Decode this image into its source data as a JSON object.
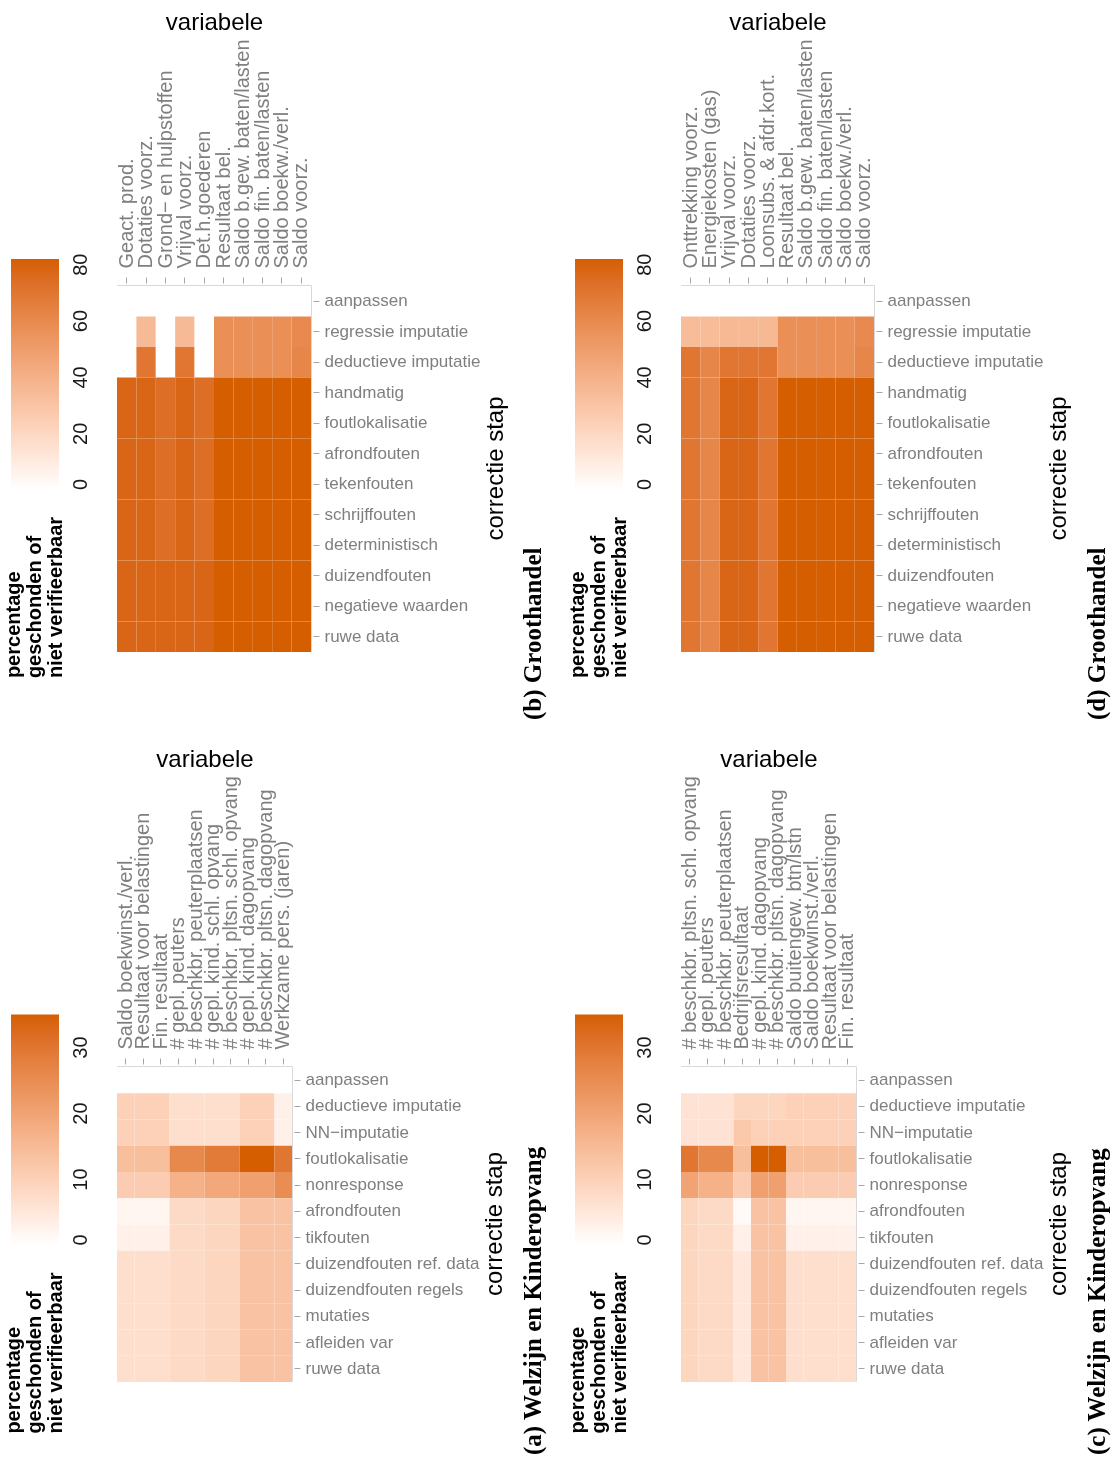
{
  "chart_data": [
    {
      "type": "heatmap",
      "annotations": [
        "(a) Welzijn en Kinderopvang"
      ],
      "xlabel": "variabele",
      "ylabel": "correctie stap",
      "clabel": "percentage\ngeschonden of\nniet verifieerbaar",
      "color": "#d55e00",
      "clim": [
        0,
        35
      ],
      "cticks": [
        0,
        10,
        20,
        30
      ],
      "categories": [
        "Saldo boekwinst./verl.",
        "Resultaat voor belastingen",
        "Fin. resultaat",
        "# gepl. peuters",
        "# beschkbr. peuterplaatsen",
        "# gepl. kind. schl. opvang",
        "# beschkbr. pltsn. schl. opvang",
        "# gepl. kind. dagopvang",
        "# beschkbr. pltsn. dagopvang",
        "Werkzame pers. (jaren)"
      ],
      "y_categories": [
        "aanpassen",
        "deductieve imputatie",
        "NN−imputatie",
        "foutlokalisatie",
        "nonresponse",
        "afrondfouten",
        "tikfouten",
        "duizendfouten ref. data",
        "duizendfouten regels",
        "mutaties",
        "afleiden var",
        "ruwe data"
      ],
      "cells": [
        [
          0,
          0,
          0,
          0,
          0,
          0,
          0,
          0,
          0,
          0
        ],
        [
          10,
          10,
          10,
          7,
          7,
          7,
          7,
          10,
          10,
          3
        ],
        [
          10,
          10,
          10,
          7,
          7,
          7,
          7,
          10,
          10,
          3
        ],
        [
          14,
          14,
          14,
          26,
          26,
          29,
          29,
          35,
          35,
          30
        ],
        [
          11,
          11,
          11,
          17,
          17,
          19,
          19,
          21,
          21,
          25
        ],
        [
          2,
          2,
          2,
          8,
          8,
          9,
          9,
          13,
          13,
          13
        ],
        [
          3,
          3,
          3,
          8,
          8,
          9,
          9,
          13,
          13,
          13
        ],
        [
          7,
          7,
          7,
          8,
          8,
          9,
          9,
          13,
          13,
          13
        ],
        [
          7,
          7,
          7,
          8,
          8,
          9,
          9,
          13,
          13,
          13
        ],
        [
          7,
          7,
          7,
          8,
          8,
          9,
          9,
          13,
          13,
          13
        ],
        [
          7,
          7,
          7,
          8,
          8,
          9,
          9,
          13,
          13,
          13
        ],
        [
          7,
          7,
          7,
          8,
          8,
          9,
          9,
          13,
          13,
          13
        ]
      ]
    },
    {
      "type": "heatmap",
      "annotations": [
        "(b) Groothandel"
      ],
      "xlabel": "variabele",
      "ylabel": "correctie stap",
      "clabel": "percentage\ngeschonden of\nniet verifieerbaar",
      "color": "#d55e00",
      "clim": [
        0,
        82
      ],
      "cticks": [
        0,
        20,
        40,
        60,
        80
      ],
      "categories": [
        "Geact. prod.",
        "Dotaties voorz.",
        "Grond− en hulpstoffen",
        "Vrijval voorz.",
        "Det.h.goederen",
        "Resultaat bel.",
        "Saldo b.gew. baten/lasten",
        "Saldo fin. baten/lasten",
        "Saldo boekw./verl.",
        "Saldo voorz."
      ],
      "y_categories": [
        "aanpassen",
        "regressie imputatie",
        "deductieve imputatie",
        "handmatig",
        "foutlokalisatie",
        "afrondfouten",
        "tekenfouten",
        "schrijffouten",
        "deterministisch",
        "duizendfouten",
        "negatieve waarden",
        "ruwe data"
      ],
      "cells": [
        [
          0,
          0,
          0,
          0,
          0,
          0,
          0,
          0,
          0,
          0
        ],
        [
          0,
          35,
          0,
          35,
          0,
          57,
          57,
          57,
          57,
          60
        ],
        [
          0,
          70,
          0,
          70,
          0,
          57,
          57,
          57,
          57,
          62
        ],
        [
          78,
          78,
          74,
          78,
          74,
          82,
          82,
          82,
          82,
          82
        ],
        [
          78,
          78,
          74,
          78,
          74,
          82,
          82,
          82,
          82,
          82
        ],
        [
          78,
          78,
          74,
          78,
          74,
          82,
          82,
          82,
          82,
          82
        ],
        [
          78,
          78,
          74,
          78,
          74,
          82,
          82,
          82,
          82,
          82
        ],
        [
          78,
          78,
          74,
          78,
          74,
          82,
          82,
          82,
          82,
          82
        ],
        [
          78,
          78,
          74,
          78,
          74,
          82,
          82,
          82,
          82,
          82
        ],
        [
          78,
          78,
          78,
          78,
          78,
          82,
          82,
          82,
          82,
          82
        ],
        [
          78,
          78,
          78,
          78,
          78,
          82,
          82,
          82,
          82,
          82
        ],
        [
          78,
          78,
          78,
          78,
          78,
          82,
          82,
          82,
          82,
          82
        ]
      ]
    },
    {
      "type": "heatmap",
      "annotations": [
        "(c) Welzijn en Kinderopvang"
      ],
      "xlabel": "variabele",
      "ylabel": "correctie stap",
      "clabel": "percentage\ngeschonden of\nniet verifieerbaar",
      "color": "#d55e00",
      "clim": [
        0,
        35
      ],
      "cticks": [
        0,
        10,
        20,
        30
      ],
      "categories": [
        "# beschkbr. pltsn. schl. opvang",
        "# gepl. peuters",
        "# beschkbr. peuterplaatsen",
        "Bedrijfsresultaat",
        "# gepl. kind. dagopvang",
        "# beschkbr. pltsn. dagopvang",
        "Saldo buitengew. btn/lstn",
        "Saldo boekwinst./verl.",
        "Resultaat voor belastingen",
        "Fin. resultaat"
      ],
      "y_categories": [
        "aanpassen",
        "deductieve imputatie",
        "NN−imputatie",
        "foutlokalisatie",
        "nonresponse",
        "afrondfouten",
        "tikfouten",
        "duizendfouten ref. data",
        "duizendfouten regels",
        "mutaties",
        "afleiden var",
        "ruwe data"
      ],
      "cells": [
        [
          0,
          0,
          0,
          0,
          0,
          0,
          0,
          0,
          0,
          0
        ],
        [
          6,
          6,
          6,
          9,
          9,
          9,
          10,
          10,
          10,
          10
        ],
        [
          6,
          6,
          6,
          12,
          10,
          10,
          10,
          10,
          10,
          10
        ],
        [
          30,
          26,
          26,
          14,
          35,
          35,
          14,
          14,
          14,
          14
        ],
        [
          20,
          17,
          17,
          11,
          21,
          21,
          11,
          11,
          11,
          11
        ],
        [
          9,
          8,
          8,
          1,
          13,
          13,
          2,
          2,
          2,
          2
        ],
        [
          9,
          8,
          8,
          3,
          13,
          13,
          3,
          3,
          3,
          3
        ],
        [
          9,
          8,
          8,
          5,
          13,
          13,
          7,
          7,
          7,
          7
        ],
        [
          9,
          8,
          8,
          5,
          13,
          13,
          7,
          7,
          7,
          7
        ],
        [
          9,
          8,
          8,
          5,
          13,
          13,
          7,
          7,
          7,
          7
        ],
        [
          9,
          8,
          8,
          5,
          13,
          13,
          7,
          7,
          7,
          7
        ],
        [
          9,
          8,
          8,
          5,
          13,
          13,
          7,
          7,
          7,
          7
        ]
      ]
    },
    {
      "type": "heatmap",
      "annotations": [
        "(d) Groothandel"
      ],
      "xlabel": "variabele",
      "ylabel": "correctie stap",
      "clabel": "percentage\ngeschonden of\nniet verifieerbaar",
      "color": "#d55e00",
      "clim": [
        0,
        82
      ],
      "cticks": [
        0,
        20,
        40,
        60,
        80
      ],
      "categories": [
        "Onttrekking voorz.",
        "Energiekosten (gas)",
        "Vrijval voorz.",
        "Dotaties voorz.",
        "Loonsubs. & afdr.kort.",
        "Resultaat bel.",
        "Saldo b.gew. baten/lasten",
        "Saldo fin. baten/lasten",
        "Saldo boekw./verl.",
        "Saldo voorz."
      ],
      "y_categories": [
        "aanpassen",
        "regressie imputatie",
        "deductieve imputatie",
        "handmatig",
        "foutlokalisatie",
        "afrondfouten",
        "tekenfouten",
        "schrijffouten",
        "deterministisch",
        "duizendfouten",
        "negatieve waarden",
        "ruwe data"
      ],
      "cells": [
        [
          0,
          0,
          0,
          0,
          0,
          0,
          0,
          0,
          0,
          0
        ],
        [
          34,
          34,
          36,
          36,
          36,
          57,
          57,
          57,
          57,
          60
        ],
        [
          70,
          62,
          70,
          70,
          70,
          57,
          57,
          57,
          57,
          62
        ],
        [
          70,
          62,
          78,
          78,
          70,
          82,
          82,
          82,
          82,
          82
        ],
        [
          70,
          62,
          78,
          78,
          70,
          82,
          82,
          82,
          82,
          82
        ],
        [
          70,
          62,
          78,
          78,
          70,
          82,
          82,
          82,
          82,
          82
        ],
        [
          70,
          62,
          78,
          78,
          70,
          82,
          82,
          82,
          82,
          82
        ],
        [
          70,
          62,
          78,
          78,
          70,
          82,
          82,
          82,
          82,
          82
        ],
        [
          70,
          62,
          78,
          78,
          70,
          82,
          82,
          82,
          82,
          82
        ],
        [
          70,
          62,
          78,
          78,
          70,
          82,
          82,
          82,
          82,
          82
        ],
        [
          70,
          62,
          78,
          78,
          70,
          82,
          82,
          82,
          82,
          82
        ],
        [
          70,
          62,
          78,
          78,
          70,
          82,
          82,
          82,
          82,
          82
        ]
      ]
    }
  ]
}
